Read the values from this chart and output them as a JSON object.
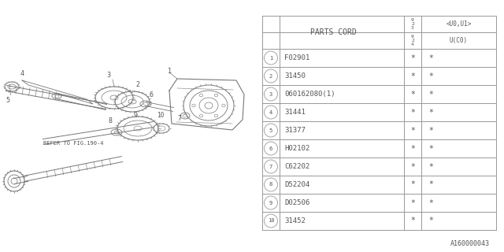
{
  "bg_color": "#ffffff",
  "rows": [
    {
      "num": "1",
      "part": "F02901",
      "c1": "*",
      "c2": "*"
    },
    {
      "num": "2",
      "part": "31450",
      "c1": "*",
      "c2": "*"
    },
    {
      "num": "3",
      "part": "060162080(1)",
      "c1": "*",
      "c2": "*"
    },
    {
      "num": "4",
      "part": "31441",
      "c1": "*",
      "c2": "*"
    },
    {
      "num": "5",
      "part": "31377",
      "c1": "*",
      "c2": "*"
    },
    {
      "num": "6",
      "part": "H02102",
      "c1": "*",
      "c2": "*"
    },
    {
      "num": "7",
      "part": "C62202",
      "c1": "*",
      "c2": "*"
    },
    {
      "num": "8",
      "part": "D52204",
      "c1": "*",
      "c2": "*"
    },
    {
      "num": "9",
      "part": "D02506",
      "c1": "*",
      "c2": "*"
    },
    {
      "num": "10",
      "part": "31452",
      "c1": "*",
      "c2": "*"
    }
  ],
  "footer_text": "A160000043",
  "refer_text": "REFER TO FIG.190-4",
  "line_color": "#999999",
  "text_color": "#555555",
  "diag_color": "#777777"
}
